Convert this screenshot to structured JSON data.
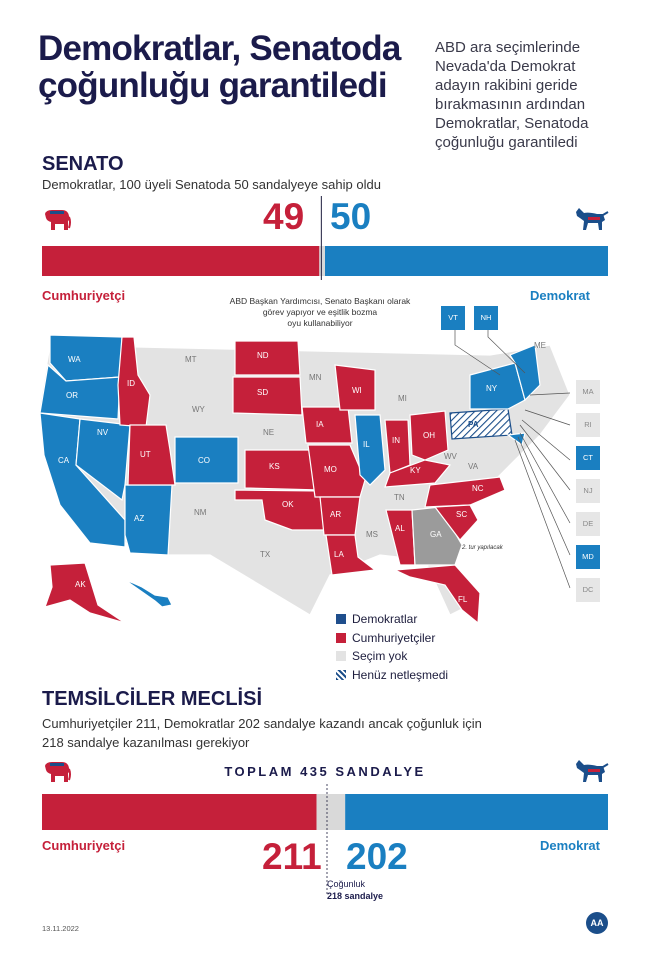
{
  "title_lines": [
    "Demokratlar, Senatoda",
    "çoğunluğu garantiledi"
  ],
  "lede_lines": [
    "ABD ara seçimlerinde",
    "Nevada'da Demokrat",
    "adayın rakibini geride",
    "bırakmasının ardından",
    "Demokratlar, Senatoda",
    "çoğunluğu garantiledi"
  ],
  "senate": {
    "heading": "SENATO",
    "subheading": "Demokratlar, 100 üyeli Senatoda 50 sandalyeye sahip oldu",
    "rep_label": "Cumhuriyetçi",
    "dem_label": "Demokrat",
    "vp_note_lines": [
      "ABD Başkan Yardımcısı, Senato Başkanı olarak",
      "görev yapıyor ve eşitlik bozma",
      "oyu kullanabiliyor"
    ]
  },
  "house": {
    "heading": "TEMSİLCİLER MECLİSİ",
    "subheading_lines": [
      "Cumhuriyetçiler 211, Demokratlar 202 sandalye kazandı ancak çoğunluk için",
      "218 sandalye kazanılması gerekiyor"
    ],
    "total_label": "TOPLAM 435 SANDALYE",
    "rep_label": "Cumhuriyetçi",
    "dem_label": "Demokrat",
    "majority_label": "Çoğunluk",
    "majority_value": "218 sandalye"
  },
  "map": {
    "legend": [
      {
        "label": "Demokratlar",
        "color": "#1f4e8c"
      },
      {
        "label": "Cumhuriyetçiler",
        "color": "#c5203a"
      },
      {
        "label": "Seçim yok",
        "color": "#e3e3e3"
      },
      {
        "label": "Henüz netleşmedi",
        "color": "hatched"
      }
    ],
    "ga_note": "2. tur yapılacak",
    "states": [
      {
        "code": "WA",
        "status": "dem"
      },
      {
        "code": "OR",
        "status": "dem"
      },
      {
        "code": "CA",
        "status": "dem"
      },
      {
        "code": "NV",
        "status": "dem"
      },
      {
        "code": "AZ",
        "status": "dem"
      },
      {
        "code": "CO",
        "status": "dem"
      },
      {
        "code": "IL",
        "status": "dem"
      },
      {
        "code": "NY",
        "status": "dem"
      },
      {
        "code": "HI",
        "status": "dem"
      },
      {
        "code": "ID",
        "status": "rep"
      },
      {
        "code": "UT",
        "status": "rep"
      },
      {
        "code": "ND",
        "status": "rep"
      },
      {
        "code": "SD",
        "status": "rep"
      },
      {
        "code": "KS",
        "status": "rep"
      },
      {
        "code": "OK",
        "status": "rep"
      },
      {
        "code": "IA",
        "status": "rep"
      },
      {
        "code": "MO",
        "status": "rep"
      },
      {
        "code": "AR",
        "status": "rep"
      },
      {
        "code": "LA",
        "status": "rep"
      },
      {
        "code": "WI",
        "status": "rep"
      },
      {
        "code": "IN",
        "status": "rep"
      },
      {
        "code": "OH",
        "status": "rep"
      },
      {
        "code": "KY",
        "status": "rep"
      },
      {
        "code": "AL",
        "status": "rep"
      },
      {
        "code": "NC",
        "status": "rep"
      },
      {
        "code": "SC",
        "status": "rep"
      },
      {
        "code": "FL",
        "status": "rep"
      },
      {
        "code": "AK",
        "status": "rep"
      },
      {
        "code": "GA",
        "status": "runoff"
      },
      {
        "code": "PA",
        "status": "hatched"
      },
      {
        "code": "MT",
        "status": "none"
      },
      {
        "code": "WY",
        "status": "none"
      },
      {
        "code": "NE",
        "status": "none"
      },
      {
        "code": "NM",
        "status": "none"
      },
      {
        "code": "TX",
        "status": "none"
      },
      {
        "code": "MN",
        "status": "none"
      },
      {
        "code": "MI",
        "status": "none"
      },
      {
        "code": "MS",
        "status": "none"
      },
      {
        "code": "TN",
        "status": "none"
      },
      {
        "code": "WV",
        "status": "none"
      },
      {
        "code": "VA",
        "status": "none"
      },
      {
        "code": "ME",
        "status": "none"
      }
    ],
    "side_boxes": [
      {
        "code": "VT",
        "status": "dem"
      },
      {
        "code": "NH",
        "status": "dem"
      },
      {
        "code": "MA",
        "status": "none"
      },
      {
        "code": "RI",
        "status": "none"
      },
      {
        "code": "CT",
        "status": "dem"
      },
      {
        "code": "NJ",
        "status": "none"
      },
      {
        "code": "DE",
        "status": "none"
      },
      {
        "code": "MD",
        "status": "dem"
      },
      {
        "code": "DC",
        "status": "none"
      }
    ]
  },
  "chart_data": [
    {
      "type": "bar",
      "title": "SENATO",
      "total": 100,
      "series": [
        {
          "name": "Cumhuriyetçi",
          "values": [
            49
          ],
          "color": "#c5203a"
        },
        {
          "name": "Demokrat",
          "values": [
            50
          ],
          "color": "#1a7fc1"
        }
      ],
      "undecided": 1
    },
    {
      "type": "bar",
      "title": "TEMSİLCİLER MECLİSİ",
      "total": 435,
      "majority": 218,
      "series": [
        {
          "name": "Cumhuriyetçi",
          "values": [
            211
          ],
          "color": "#c5203a"
        },
        {
          "name": "Demokrat",
          "values": [
            202
          ],
          "color": "#1a7fc1"
        }
      ],
      "undecided": 22
    }
  ],
  "footer": {
    "date": "13.11.2022",
    "logo_text": "AA"
  },
  "colors": {
    "rep": "#c5203a",
    "dem": "#1a7fc1",
    "none": "#e3e3e3",
    "runoff": "#9b9b9b"
  }
}
